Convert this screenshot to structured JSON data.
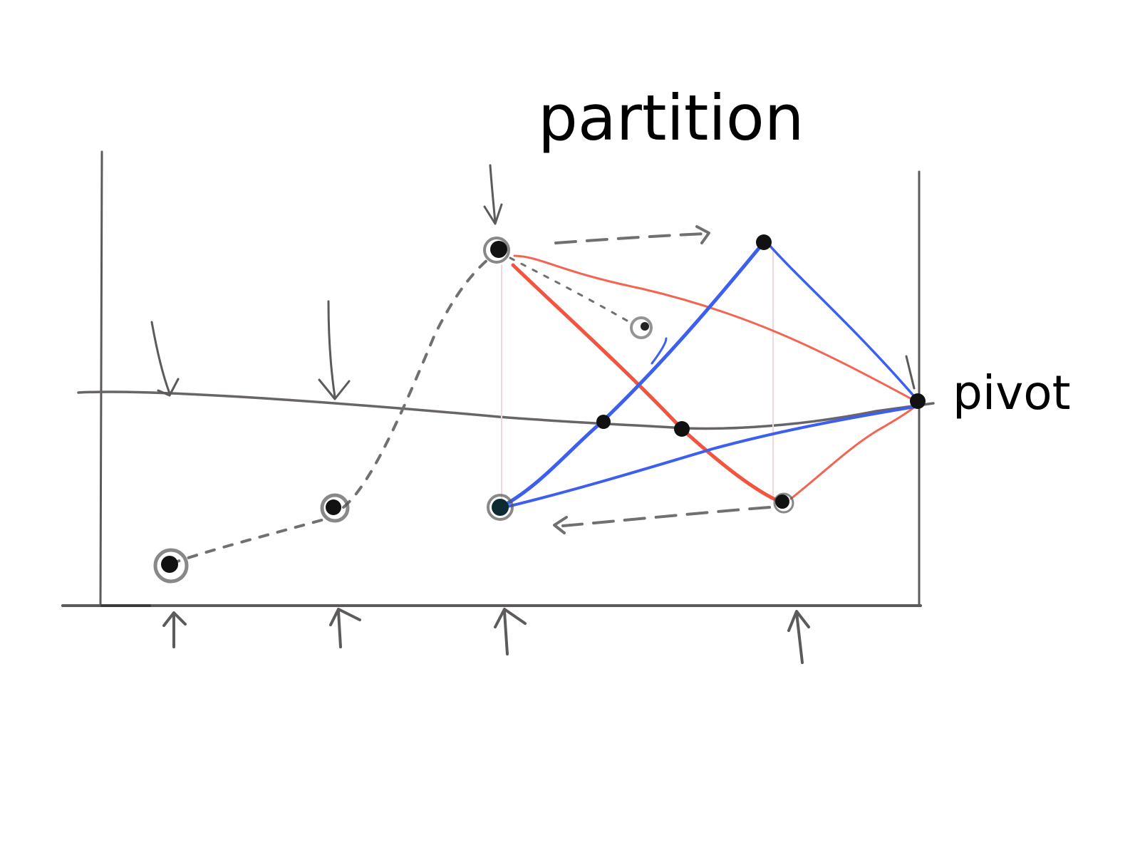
{
  "title": "partition",
  "pivot_label": "pivot",
  "colors": {
    "ink": "#5d5a5c",
    "dot": "#111111",
    "red_line": "#f2543f",
    "blue_line": "#3c5ff0",
    "faint_guide": "#f3d6d9"
  },
  "icons": [
    "arrow-down-icon",
    "arrow-up-icon",
    "dashed-arrow-icon"
  ]
}
